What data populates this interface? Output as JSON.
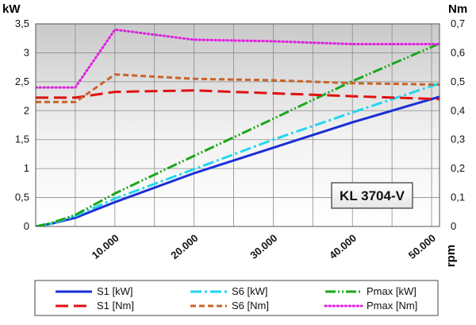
{
  "chart_data": {
    "type": "line",
    "model_label": "KL 3704-V",
    "x_unit": "rpm",
    "y_left_unit": "kW",
    "y_right_unit": "Nm",
    "xlim": [
      0,
      51000
    ],
    "ylim_left": [
      0,
      3.5
    ],
    "ylim_right": [
      0,
      0.7
    ],
    "x_ticks": [
      10000,
      20000,
      30000,
      40000,
      50000
    ],
    "x_tick_labels": [
      "10.000",
      "20.000",
      "30.000",
      "40.000",
      "50.000"
    ],
    "y_left_ticks": [
      0,
      0.5,
      1,
      1.5,
      2,
      2.5,
      3,
      3.5
    ],
    "y_left_tick_labels": [
      "0",
      "0,5",
      "1",
      "1,5",
      "2",
      "2,5",
      "3",
      "3,5"
    ],
    "y_right_ticks": [
      0,
      0.1,
      0.2,
      0.3,
      0.4,
      0.5,
      0.6,
      0.7
    ],
    "y_right_tick_labels": [
      "0",
      "0,1",
      "0,2",
      "0,3",
      "0,4",
      "0,5",
      "0,6",
      "0,7"
    ],
    "grid": true,
    "legend_position": "bottom",
    "series": [
      {
        "name": "S1 [kW]",
        "axis": "left",
        "color": "#1a2fd6",
        "dash": "solid",
        "x": [
          0,
          2000,
          5000,
          10000,
          20000,
          30000,
          40000,
          51000
        ],
        "y": [
          0,
          0.05,
          0.15,
          0.42,
          0.92,
          1.36,
          1.8,
          2.24
        ]
      },
      {
        "name": "S6 [kW]",
        "axis": "left",
        "color": "#22d6ee",
        "dash": "dashdot",
        "x": [
          0,
          2000,
          5000,
          10000,
          20000,
          30000,
          40000,
          51000
        ],
        "y": [
          0,
          0.05,
          0.18,
          0.48,
          0.99,
          1.5,
          1.97,
          2.47
        ]
      },
      {
        "name": "Pmax [kW]",
        "axis": "left",
        "color": "#1aa81a",
        "dash": "dashdotdot",
        "x": [
          0,
          2000,
          5000,
          10000,
          20000,
          30000,
          40000,
          51000
        ],
        "y": [
          0,
          0.06,
          0.2,
          0.57,
          1.22,
          1.86,
          2.51,
          3.16
        ]
      },
      {
        "name": "S1 [Nm]",
        "axis": "right",
        "color": "#e01010",
        "dash": "longdash",
        "x": [
          0,
          5000,
          10000,
          20000,
          30000,
          40000,
          51000
        ],
        "y": [
          0.445,
          0.445,
          0.465,
          0.47,
          0.46,
          0.45,
          0.44
        ]
      },
      {
        "name": "S6 [Nm]",
        "axis": "right",
        "color": "#c86428",
        "dash": "dash",
        "x": [
          0,
          5000,
          10000,
          20000,
          30000,
          40000,
          51000
        ],
        "y": [
          0.43,
          0.43,
          0.525,
          0.51,
          0.505,
          0.495,
          0.49
        ]
      },
      {
        "name": "Pmax [Nm]",
        "axis": "right",
        "color": "#e020e0",
        "dash": "dot",
        "x": [
          0,
          5000,
          10000,
          20000,
          30000,
          40000,
          51000
        ],
        "y": [
          0.48,
          0.48,
          0.68,
          0.645,
          0.64,
          0.63,
          0.63
        ]
      }
    ]
  }
}
